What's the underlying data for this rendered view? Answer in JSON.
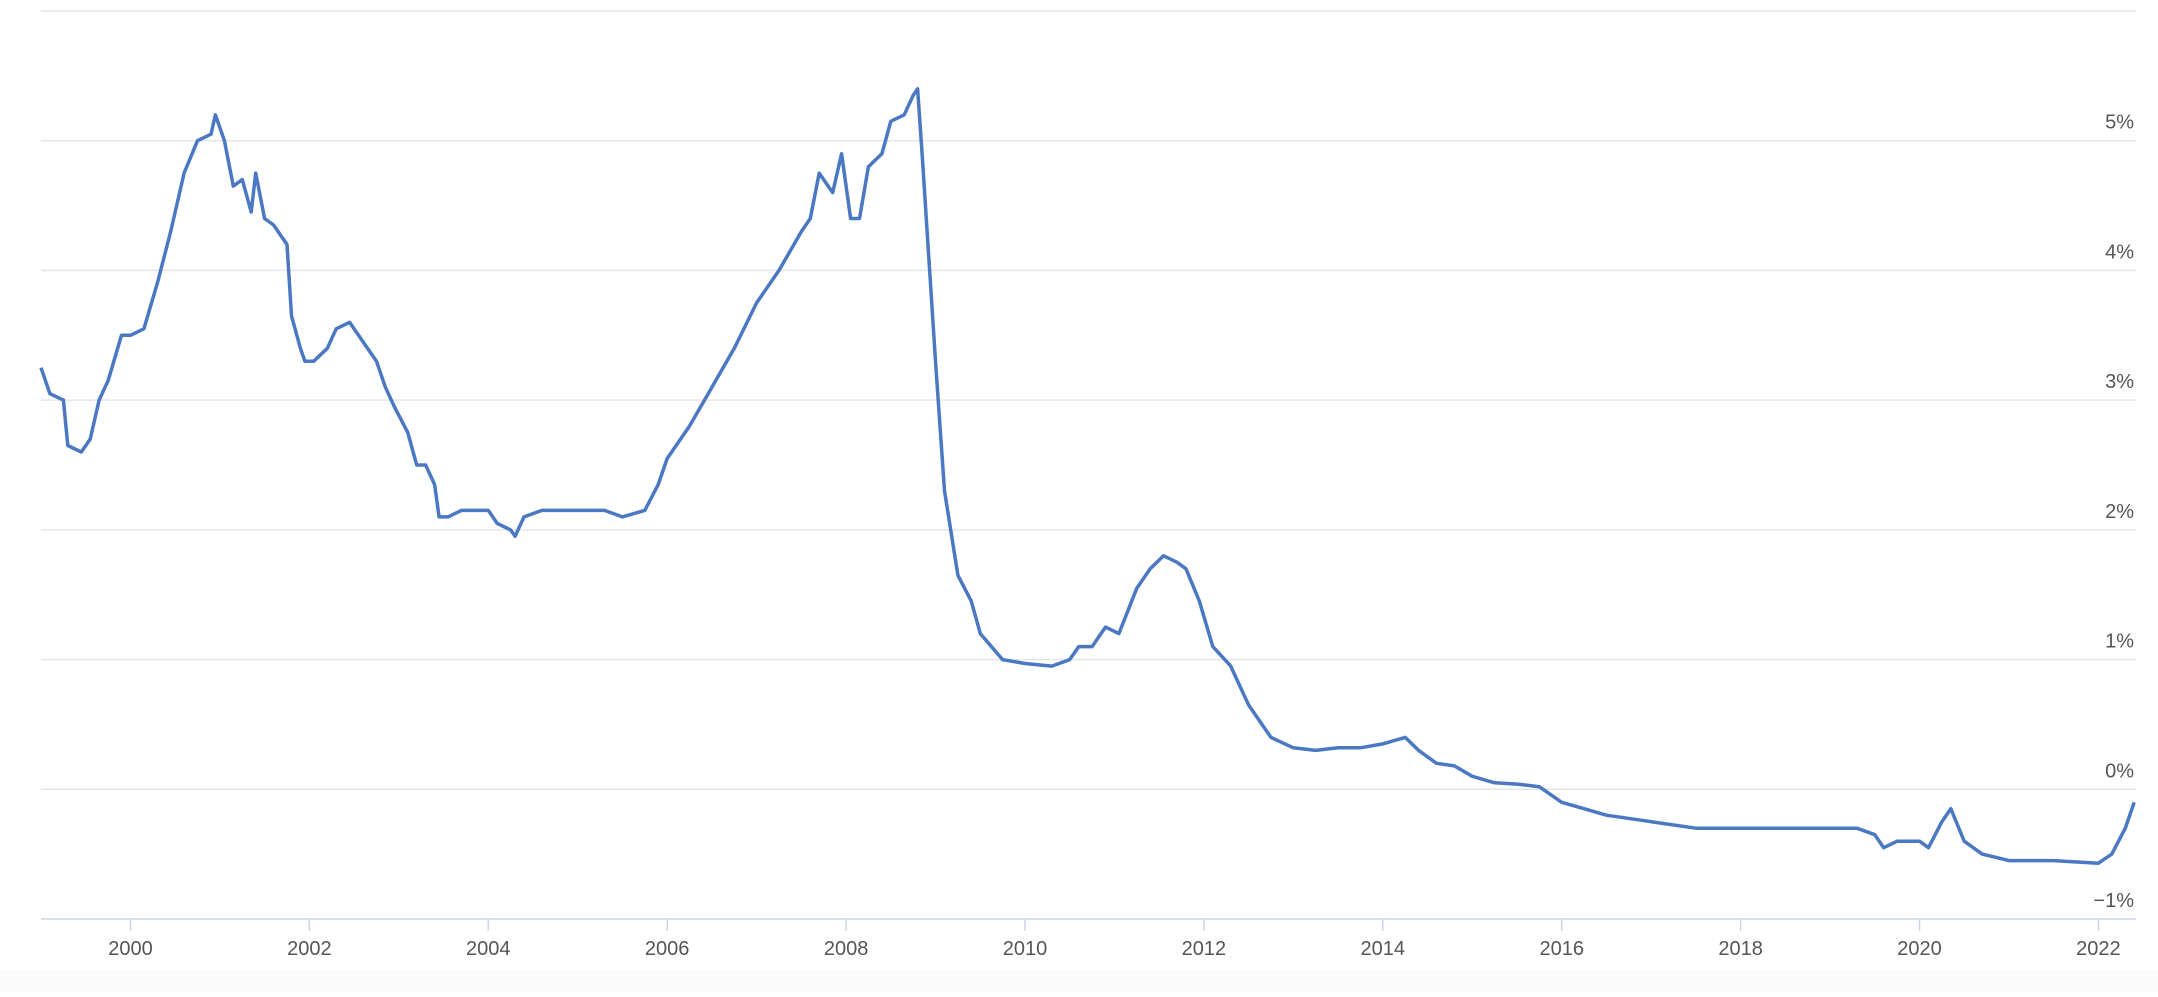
{
  "chart_data": {
    "type": "line",
    "x": [
      1999.0,
      1999.1,
      1999.25,
      1999.3,
      1999.45,
      1999.55,
      1999.65,
      1999.75,
      1999.9,
      2000.0,
      2000.15,
      2000.3,
      2000.45,
      2000.6,
      2000.75,
      2000.9,
      2000.95,
      2001.05,
      2001.15,
      2001.25,
      2001.35,
      2001.4,
      2001.5,
      2001.6,
      2001.75,
      2001.8,
      2001.9,
      2001.95,
      2002.05,
      2002.2,
      2002.3,
      2002.45,
      2002.6,
      2002.75,
      2002.85,
      2002.95,
      2003.1,
      2003.2,
      2003.3,
      2003.4,
      2003.45,
      2003.55,
      2003.7,
      2003.8,
      2003.9,
      2004.0,
      2004.1,
      2004.25,
      2004.3,
      2004.4,
      2004.6,
      2004.75,
      2005.0,
      2005.3,
      2005.5,
      2005.75,
      2005.9,
      2006.0,
      2006.25,
      2006.5,
      2006.75,
      2007.0,
      2007.25,
      2007.5,
      2007.6,
      2007.7,
      2007.85,
      2007.95,
      2008.05,
      2008.15,
      2008.25,
      2008.4,
      2008.5,
      2008.65,
      2008.75,
      2008.8,
      2008.85,
      2009.0,
      2009.1,
      2009.25,
      2009.4,
      2009.5,
      2009.75,
      2010.0,
      2010.3,
      2010.5,
      2010.6,
      2010.75,
      2010.9,
      2011.05,
      2011.25,
      2011.4,
      2011.55,
      2011.7,
      2011.8,
      2011.95,
      2012.1,
      2012.3,
      2012.5,
      2012.75,
      2013.0,
      2013.25,
      2013.5,
      2013.75,
      2014.0,
      2014.25,
      2014.4,
      2014.6,
      2014.8,
      2015.0,
      2015.25,
      2015.5,
      2015.75,
      2016.0,
      2016.25,
      2016.5,
      2017.0,
      2017.5,
      2018.0,
      2018.5,
      2019.0,
      2019.3,
      2019.5,
      2019.6,
      2019.75,
      2020.0,
      2020.1,
      2020.25,
      2020.35,
      2020.5,
      2020.7,
      2021.0,
      2021.5,
      2022.0,
      2022.15,
      2022.3,
      2022.4
    ],
    "series": [
      {
        "color": "#4a78c2",
        "values": [
          3.25,
          3.05,
          3.0,
          2.65,
          2.6,
          2.7,
          3.0,
          3.15,
          3.5,
          3.5,
          3.55,
          3.9,
          4.3,
          4.75,
          5.0,
          5.05,
          5.2,
          5.0,
          4.65,
          4.7,
          4.45,
          4.75,
          4.4,
          4.35,
          4.2,
          3.65,
          3.4,
          3.3,
          3.3,
          3.4,
          3.55,
          3.6,
          3.45,
          3.3,
          3.1,
          2.95,
          2.75,
          2.5,
          2.5,
          2.35,
          2.1,
          2.1,
          2.15,
          2.15,
          2.15,
          2.15,
          2.05,
          2.0,
          1.95,
          2.1,
          2.15,
          2.15,
          2.15,
          2.15,
          2.1,
          2.15,
          2.35,
          2.55,
          2.8,
          3.1,
          3.4,
          3.75,
          4.0,
          4.3,
          4.4,
          4.75,
          4.6,
          4.9,
          4.4,
          4.4,
          4.8,
          4.9,
          5.15,
          5.2,
          5.35,
          5.4,
          4.9,
          3.3,
          2.3,
          1.65,
          1.45,
          1.2,
          1.0,
          0.97,
          0.95,
          1.0,
          1.1,
          1.1,
          1.25,
          1.2,
          1.55,
          1.7,
          1.8,
          1.75,
          1.7,
          1.45,
          1.1,
          0.95,
          0.65,
          0.4,
          0.32,
          0.3,
          0.32,
          0.32,
          0.35,
          0.4,
          0.3,
          0.2,
          0.18,
          0.1,
          0.05,
          0.04,
          0.02,
          -0.1,
          -0.15,
          -0.2,
          -0.25,
          -0.3,
          -0.3,
          -0.3,
          -0.3,
          -0.3,
          -0.35,
          -0.45,
          -0.4,
          -0.4,
          -0.45,
          -0.25,
          -0.15,
          -0.4,
          -0.5,
          -0.55,
          -0.55,
          -0.57,
          -0.5,
          -0.3,
          -0.1
        ]
      }
    ],
    "xlim": [
      1999.0,
      2022.42
    ],
    "xticks": [
      2000,
      2002,
      2004,
      2006,
      2008,
      2010,
      2012,
      2014,
      2016,
      2018,
      2020,
      2022
    ],
    "ylim": [
      -1,
      6
    ],
    "yticks": [
      {
        "value": -1,
        "label": "−1%"
      },
      {
        "value": 0,
        "label": "0%"
      },
      {
        "value": 1,
        "label": "1%"
      },
      {
        "value": 2,
        "label": "2%"
      },
      {
        "value": 3,
        "label": "3%"
      },
      {
        "value": 4,
        "label": "4%"
      },
      {
        "value": 5,
        "label": "5%"
      }
    ],
    "grid": true
  }
}
